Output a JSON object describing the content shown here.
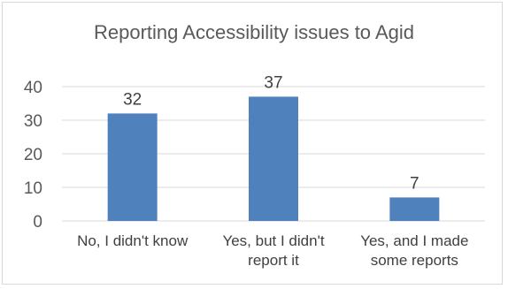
{
  "chart_data": {
    "type": "bar",
    "title": "Reporting Accessibility issues to Agid",
    "categories": [
      [
        "No, I didn't know"
      ],
      [
        "Yes, but I didn't",
        "report it"
      ],
      [
        "Yes, and I made",
        "some reports"
      ]
    ],
    "values": [
      32,
      37,
      7
    ],
    "data_labels": [
      "32",
      "37",
      "7"
    ],
    "ylim": [
      0,
      40
    ],
    "yticks": [
      "0",
      "10",
      "20",
      "30",
      "40"
    ],
    "xlabel": "",
    "ylabel": "",
    "grid": true,
    "legend": "none",
    "bar_color": "#4f81bd",
    "grid_color": "#d9d9d9"
  }
}
